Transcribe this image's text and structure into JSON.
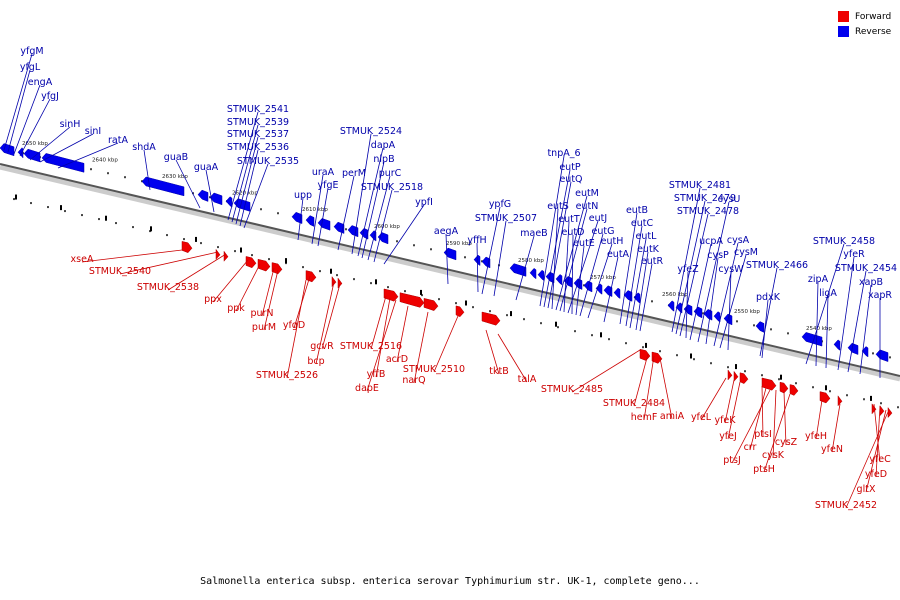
{
  "caption": "Salmonella enterica subsp. enterica serovar Typhimurium str. UK-1, complete geno...",
  "legend": [
    {
      "label": "Forward",
      "color": "#ee0000"
    },
    {
      "label": "Reverse",
      "color": "#0000ee"
    }
  ],
  "colors": {
    "forward": "#ee0000",
    "reverse": "#0000ee",
    "backbone": "#555555"
  },
  "ruler_labels": [
    "2650 kbp",
    "2640 kbp",
    "2630 kbp",
    "2620 kbp",
    "2610 kbp",
    "2600 kbp",
    "2590 kbp",
    "2580 kbp",
    "2570 kbp",
    "2560 kbp",
    "2550 kbp",
    "2540 kbp"
  ],
  "reverse_genes": [
    "yfgM",
    "yfgL",
    "engA",
    "yfgJ",
    "sinH",
    "sinI",
    "ratA",
    "shdA",
    "guaB",
    "guaA",
    "STMUK_2541",
    "STMUK_2539",
    "STMUK_2537",
    "STMUK_2536",
    "STMUK_2535",
    "upp",
    "uraA",
    "yfgE",
    "perM",
    "STMUK_2524",
    "dapA",
    "nlpB",
    "purC",
    "STMUK_2518",
    "ypfI",
    "aegA",
    "yffH",
    "ypfG",
    "STMUK_2507",
    "maeB",
    "tnpA_6",
    "eutP",
    "eutQ",
    "eutS",
    "eutM",
    "eutN",
    "eutT",
    "eutJ",
    "eutD",
    "eutE",
    "eutG",
    "eutH",
    "eutA",
    "eutB",
    "eutC",
    "eutL",
    "eutK",
    "eutR",
    "STMUK_2481",
    "STMUK_2479",
    "STMUK_2478",
    "yfeZ",
    "ucpA",
    "cysU",
    "cysP",
    "cysA",
    "cysM",
    "cysW",
    "STMUK_2466",
    "pdxK",
    "STMUK_2458",
    "zipA",
    "yfeR",
    "STMUK_2454",
    "ligA",
    "xapB",
    "xapR"
  ],
  "forward_genes": [
    "xseA",
    "STMUK_2540",
    "STMUK_2538",
    "ppx",
    "ppk",
    "purN",
    "purM",
    "yfgD",
    "STMUK_2526",
    "bcp",
    "gcvR",
    "STMUK_2516",
    "yffB",
    "dapE",
    "acrD",
    "narQ",
    "STMUK_2510",
    "tktB",
    "talA",
    "STMUK_2485",
    "STMUK_2484",
    "hemF",
    "amiA",
    "yfeL",
    "yfeK",
    "yfeJ",
    "ptsI",
    "crr",
    "ptsJ",
    "cysK",
    "cysZ",
    "ptsH",
    "yfeH",
    "yfeN",
    "yfeC",
    "yfeD",
    "gltX",
    "STMUK_2452"
  ]
}
